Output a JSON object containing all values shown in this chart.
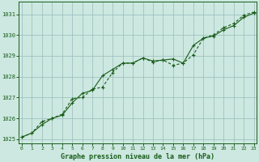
{
  "xlabel": "Graphe pression niveau de la mer (hPa)",
  "background_color": "#cce8e0",
  "grid_color": "#99bbbb",
  "line_color": "#1a5c1a",
  "x_ticks": [
    0,
    1,
    2,
    3,
    4,
    5,
    6,
    7,
    8,
    9,
    10,
    11,
    12,
    13,
    14,
    15,
    16,
    17,
    18,
    19,
    20,
    21,
    22,
    23
  ],
  "xlim": [
    -0.3,
    23.3
  ],
  "ylim": [
    1024.8,
    1031.6
  ],
  "y_ticks": [
    1025,
    1026,
    1027,
    1028,
    1029,
    1030,
    1031
  ],
  "series1_x": [
    0,
    1,
    2,
    3,
    4,
    5,
    6,
    7,
    8,
    9,
    10,
    11,
    12,
    13,
    14,
    15,
    16,
    17,
    18,
    19,
    20,
    21,
    22,
    23
  ],
  "series1_y": [
    1025.1,
    1025.3,
    1025.7,
    1026.0,
    1026.15,
    1026.75,
    1027.2,
    1027.35,
    1028.05,
    1028.35,
    1028.65,
    1028.65,
    1028.9,
    1028.75,
    1028.8,
    1028.85,
    1028.65,
    1029.5,
    1029.85,
    1029.95,
    1030.25,
    1030.45,
    1030.85,
    1031.05
  ],
  "series2_x": [
    0,
    1,
    2,
    3,
    4,
    5,
    6,
    7,
    8,
    9,
    10,
    11,
    12,
    13,
    14,
    15,
    16,
    17,
    18,
    19,
    20,
    21,
    22,
    23
  ],
  "series2_y": [
    1025.1,
    1025.3,
    1025.85,
    1026.0,
    1026.2,
    1026.95,
    1027.0,
    1027.4,
    1027.5,
    1028.2,
    1028.65,
    1028.65,
    1028.9,
    1028.7,
    1028.8,
    1028.55,
    1028.65,
    1029.05,
    1029.85,
    1030.0,
    1030.35,
    1030.55,
    1030.95,
    1031.1
  ]
}
